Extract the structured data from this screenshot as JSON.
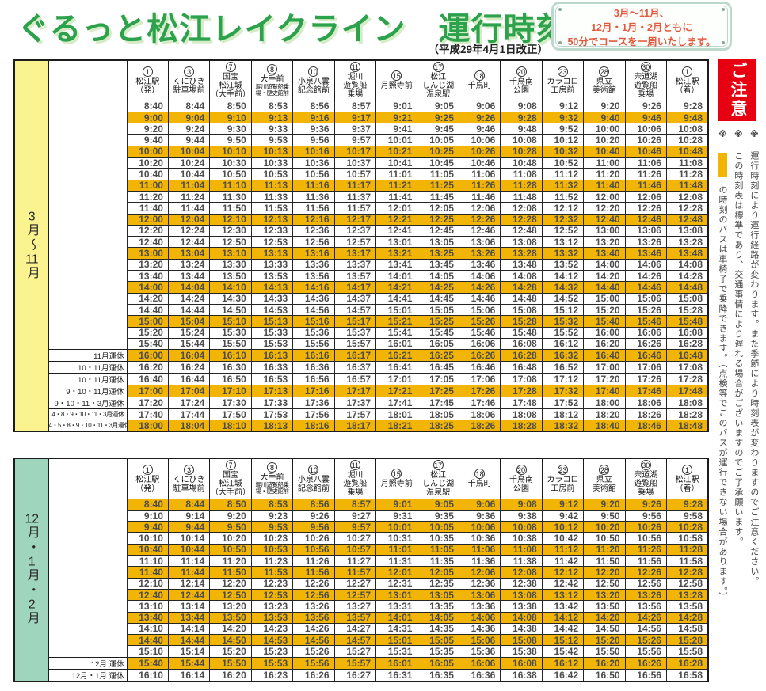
{
  "page": {
    "title": "ぐるっと松江レイクライン　運行時刻表",
    "revision": "（平成29年4月1日改正）"
  },
  "sign": {
    "lines": [
      "3月～11月、",
      "12月・1月・2月ともに",
      "50分でコースを一周いたします。"
    ]
  },
  "notice": {
    "header": "ご注意",
    "notes": [
      {
        "marker": "※",
        "swatch": false,
        "text": "運行時刻により運行経路が変わります。また季節により時刻表が変わりますのでご注意ください。"
      },
      {
        "marker": "※",
        "swatch": false,
        "text": "この時刻表は標準であり、交通事情により遅れる場合がございますのでご了承願います。"
      },
      {
        "marker": "※",
        "swatch": true,
        "text": "の時刻のバスは車椅子で乗降できます。（点検等でこのバスが運行できない場合があります。）"
      }
    ]
  },
  "stations": [
    {
      "num": "1",
      "name": "松江駅\n（発）"
    },
    {
      "num": "3",
      "name": "くにびき\n駐車場前"
    },
    {
      "num": "7",
      "name": "国宝\n松江城\n（大手前）"
    },
    {
      "num": "8",
      "name": "大手前",
      "sub": "堀川遊覧船乗場・歴史館前"
    },
    {
      "num": "10",
      "name": "小泉八雲\n記念館前"
    },
    {
      "num": "11",
      "name": "堀川\n遊覧船\n乗場"
    },
    {
      "num": "15",
      "name": "月照寺前"
    },
    {
      "num": "17",
      "name": "松江\nしんじ湖\n温泉駅"
    },
    {
      "num": "18",
      "name": "千鳥町"
    },
    {
      "num": "20",
      "name": "千鳥南\n公園"
    },
    {
      "num": "23",
      "name": "カラコロ\n工房前"
    },
    {
      "num": "28",
      "name": "県立\n美術館"
    },
    {
      "num": "30",
      "name": "宍道湖\n遊覧船\n乗場"
    },
    {
      "num": "1",
      "name": "松江駅\n（着）"
    }
  ],
  "tables": [
    {
      "id": "spring",
      "season_label": "3月〜11月",
      "label_bg": "#faf38f",
      "rows": [
        {
          "note": "",
          "hl": false,
          "times": [
            "8:40",
            "8:44",
            "8:50",
            "8:53",
            "8:56",
            "8:57",
            "9:01",
            "9:05",
            "9:06",
            "9:08",
            "9:12",
            "9:20",
            "9:26",
            "9:28"
          ]
        },
        {
          "note": "",
          "hl": true,
          "times": [
            "9:00",
            "9:04",
            "9:10",
            "9:13",
            "9:16",
            "9:17",
            "9:21",
            "9:25",
            "9:26",
            "9:28",
            "9:32",
            "9:40",
            "9:46",
            "9:48"
          ]
        },
        {
          "note": "",
          "hl": false,
          "times": [
            "9:20",
            "9:24",
            "9:30",
            "9:33",
            "9:36",
            "9:37",
            "9:41",
            "9:45",
            "9:46",
            "9:48",
            "9:52",
            "10:00",
            "10:06",
            "10:08"
          ]
        },
        {
          "note": "",
          "hl": false,
          "times": [
            "9:40",
            "9:44",
            "9:50",
            "9:53",
            "9:56",
            "9:57",
            "10:01",
            "10:05",
            "10:06",
            "10:08",
            "10:12",
            "10:20",
            "10:26",
            "10:28"
          ]
        },
        {
          "note": "",
          "hl": true,
          "times": [
            "10:00",
            "10:04",
            "10:10",
            "10:13",
            "10:16",
            "10:17",
            "10:21",
            "10:25",
            "10:26",
            "10:28",
            "10:32",
            "10:40",
            "10:46",
            "10:48"
          ]
        },
        {
          "note": "",
          "hl": false,
          "times": [
            "10:20",
            "10:24",
            "10:30",
            "10:33",
            "10:36",
            "10:37",
            "10:41",
            "10:45",
            "10:46",
            "10:48",
            "10:52",
            "11:00",
            "11:06",
            "11:08"
          ]
        },
        {
          "note": "",
          "hl": false,
          "times": [
            "10:40",
            "10:44",
            "10:50",
            "10:53",
            "10:56",
            "10:57",
            "11:01",
            "11:05",
            "11:06",
            "11:08",
            "11:12",
            "11:20",
            "11:26",
            "11:28"
          ]
        },
        {
          "note": "",
          "hl": true,
          "times": [
            "11:00",
            "11:04",
            "11:10",
            "11:13",
            "11:16",
            "11:17",
            "11:21",
            "11:25",
            "11:26",
            "11:28",
            "11:32",
            "11:40",
            "11:46",
            "11:48"
          ]
        },
        {
          "note": "",
          "hl": false,
          "times": [
            "11:20",
            "11:24",
            "11:30",
            "11:33",
            "11:36",
            "11:37",
            "11:41",
            "11:45",
            "11:46",
            "11:48",
            "11:52",
            "12:00",
            "12:06",
            "12:08"
          ]
        },
        {
          "note": "",
          "hl": false,
          "times": [
            "11:40",
            "11:44",
            "11:50",
            "11:53",
            "11:56",
            "11:57",
            "12:01",
            "12:05",
            "12:06",
            "12:08",
            "12:12",
            "12:20",
            "12:26",
            "12:28"
          ]
        },
        {
          "note": "",
          "hl": true,
          "times": [
            "12:00",
            "12:04",
            "12:10",
            "12:13",
            "12:16",
            "12:17",
            "12:21",
            "12:25",
            "12:26",
            "12:28",
            "12:32",
            "12:40",
            "12:46",
            "12:48"
          ]
        },
        {
          "note": "",
          "hl": false,
          "times": [
            "12:20",
            "12:24",
            "12:30",
            "12:33",
            "12:36",
            "12:37",
            "12:41",
            "12:45",
            "12:46",
            "12:48",
            "12:52",
            "13:00",
            "13:06",
            "13:08"
          ]
        },
        {
          "note": "",
          "hl": false,
          "times": [
            "12:40",
            "12:44",
            "12:50",
            "12:53",
            "12:56",
            "12:57",
            "13:01",
            "13:05",
            "13:06",
            "13:08",
            "13:12",
            "13:20",
            "13:26",
            "13:28"
          ]
        },
        {
          "note": "",
          "hl": true,
          "times": [
            "13:00",
            "13:04",
            "13:10",
            "13:13",
            "13:16",
            "13:17",
            "13:21",
            "13:25",
            "13:26",
            "13:28",
            "13:32",
            "13:40",
            "13:46",
            "13:48"
          ]
        },
        {
          "note": "",
          "hl": false,
          "times": [
            "13:20",
            "13:24",
            "13:30",
            "13:33",
            "13:36",
            "13:37",
            "13:41",
            "13:45",
            "13:46",
            "13:48",
            "13:52",
            "14:00",
            "14:06",
            "14:08"
          ]
        },
        {
          "note": "",
          "hl": false,
          "times": [
            "13:40",
            "13:44",
            "13:50",
            "13:53",
            "13:56",
            "13:57",
            "14:01",
            "14:05",
            "14:06",
            "14:08",
            "14:12",
            "14:20",
            "14:26",
            "14:28"
          ]
        },
        {
          "note": "",
          "hl": true,
          "times": [
            "14:00",
            "14:04",
            "14:10",
            "14:13",
            "14:16",
            "14:17",
            "14:21",
            "14:25",
            "14:26",
            "14:28",
            "14:32",
            "14:40",
            "14:46",
            "14:48"
          ]
        },
        {
          "note": "",
          "hl": false,
          "times": [
            "14:20",
            "14:24",
            "14:30",
            "14:33",
            "14:36",
            "14:37",
            "14:41",
            "14:45",
            "14:46",
            "14:48",
            "14:52",
            "15:00",
            "15:06",
            "15:08"
          ]
        },
        {
          "note": "",
          "hl": false,
          "times": [
            "14:40",
            "14:44",
            "14:50",
            "14:53",
            "14:56",
            "14:57",
            "15:01",
            "15:05",
            "15:06",
            "15:08",
            "15:12",
            "15:20",
            "15:26",
            "15:28"
          ]
        },
        {
          "note": "",
          "hl": true,
          "times": [
            "15:00",
            "15:04",
            "15:10",
            "15:13",
            "15:16",
            "15:17",
            "15:21",
            "15:25",
            "15:26",
            "15:28",
            "15:32",
            "15:40",
            "15:46",
            "15:48"
          ]
        },
        {
          "note": "",
          "hl": false,
          "times": [
            "15:20",
            "15:24",
            "15:30",
            "15:33",
            "15:36",
            "15:37",
            "15:41",
            "15:45",
            "15:46",
            "15:48",
            "15:52",
            "16:00",
            "16:06",
            "16:08"
          ]
        },
        {
          "note": "",
          "hl": false,
          "times": [
            "15:40",
            "15:44",
            "15:50",
            "15:53",
            "15:56",
            "15:57",
            "16:01",
            "16:05",
            "16:06",
            "16:08",
            "16:12",
            "16:20",
            "16:26",
            "16:28"
          ]
        },
        {
          "note": "11月運休",
          "hl": true,
          "times": [
            "16:00",
            "16:04",
            "16:10",
            "16:13",
            "16:16",
            "16:17",
            "16:21",
            "16:25",
            "16:26",
            "16:28",
            "16:32",
            "16:40",
            "16:46",
            "16:48"
          ]
        },
        {
          "note": "10・11月運休",
          "hl": false,
          "times": [
            "16:20",
            "16:24",
            "16:30",
            "16:33",
            "16:36",
            "16:37",
            "16:41",
            "16:45",
            "16:46",
            "16:48",
            "16:52",
            "17:00",
            "17:06",
            "17:08"
          ]
        },
        {
          "note": "10・11月運休",
          "hl": false,
          "times": [
            "16:40",
            "16:44",
            "16:50",
            "16:53",
            "16:56",
            "16:57",
            "17:01",
            "17:05",
            "17:06",
            "17:08",
            "17:12",
            "17:20",
            "17:26",
            "17:28"
          ]
        },
        {
          "note": "9・10・11月運休",
          "hl": true,
          "times": [
            "17:00",
            "17:04",
            "17:10",
            "17:13",
            "17:16",
            "17:17",
            "17:21",
            "17:25",
            "17:26",
            "17:28",
            "17:32",
            "17:40",
            "17:46",
            "17:48"
          ]
        },
        {
          "note": "9・10・11・3月運休",
          "hl": false,
          "times": [
            "17:20",
            "17:24",
            "17:30",
            "17:33",
            "17:36",
            "17:37",
            "17:41",
            "17:45",
            "17:46",
            "17:48",
            "17:52",
            "18:00",
            "18:06",
            "18:08"
          ]
        },
        {
          "note": "4・8・9・10・11・3月運休",
          "hl": false,
          "times": [
            "17:40",
            "17:44",
            "17:50",
            "17:53",
            "17:56",
            "17:57",
            "18:01",
            "18:05",
            "18:06",
            "18:08",
            "18:12",
            "18:20",
            "18:26",
            "18:28"
          ]
        },
        {
          "note": "4・5・8・9・10・11・3月運休",
          "hl": true,
          "times": [
            "18:00",
            "18:04",
            "18:10",
            "18:13",
            "18:16",
            "18:17",
            "18:21",
            "18:25",
            "18:26",
            "18:28",
            "18:32",
            "18:40",
            "18:46",
            "18:48"
          ]
        }
      ]
    },
    {
      "id": "winter",
      "season_label": "12月・1月・2月",
      "label_bg": "#9ed5bc",
      "rows": [
        {
          "note": "",
          "hl": true,
          "times": [
            "8:40",
            "8:44",
            "8:50",
            "8:53",
            "8:56",
            "8:57",
            "9:01",
            "9:05",
            "9:06",
            "9:08",
            "9:12",
            "9:20",
            "9:26",
            "9:28"
          ]
        },
        {
          "note": "",
          "hl": false,
          "times": [
            "9:10",
            "9:14",
            "9:20",
            "9:23",
            "9:26",
            "9:27",
            "9:31",
            "9:35",
            "9:36",
            "9:38",
            "9:42",
            "9:50",
            "9:56",
            "9:58"
          ]
        },
        {
          "note": "",
          "hl": true,
          "times": [
            "9:40",
            "9:44",
            "9:50",
            "9:53",
            "9:56",
            "9:57",
            "10:01",
            "10:05",
            "10:06",
            "10:08",
            "10:12",
            "10:20",
            "10:26",
            "10:28"
          ]
        },
        {
          "note": "",
          "hl": false,
          "times": [
            "10:10",
            "10:14",
            "10:20",
            "10:23",
            "10:26",
            "10:27",
            "10:31",
            "10:35",
            "10:36",
            "10:38",
            "10:42",
            "10:50",
            "10:56",
            "10:58"
          ]
        },
        {
          "note": "",
          "hl": true,
          "times": [
            "10:40",
            "10:44",
            "10:50",
            "10:53",
            "10:56",
            "10:57",
            "11:01",
            "11:05",
            "11:06",
            "11:08",
            "11:12",
            "11:20",
            "11:26",
            "11:28"
          ]
        },
        {
          "note": "",
          "hl": false,
          "times": [
            "11:10",
            "11:14",
            "11:20",
            "11:23",
            "11:26",
            "11:27",
            "11:31",
            "11:35",
            "11:36",
            "11:38",
            "11:42",
            "11:50",
            "11:56",
            "11:58"
          ]
        },
        {
          "note": "",
          "hl": true,
          "times": [
            "11:40",
            "11:44",
            "11:50",
            "11:53",
            "11:56",
            "11:57",
            "12:01",
            "12:05",
            "12:06",
            "12:08",
            "12:12",
            "12:20",
            "12:26",
            "12:28"
          ]
        },
        {
          "note": "",
          "hl": false,
          "times": [
            "12:10",
            "12:14",
            "12:20",
            "12:23",
            "12:26",
            "12:27",
            "12:31",
            "12:35",
            "12:36",
            "12:38",
            "12:42",
            "12:50",
            "12:56",
            "12:58"
          ]
        },
        {
          "note": "",
          "hl": true,
          "times": [
            "12:40",
            "12:44",
            "12:50",
            "12:53",
            "12:56",
            "12:57",
            "13:01",
            "13:05",
            "13:06",
            "13:08",
            "13:12",
            "13:20",
            "13:26",
            "13:28"
          ]
        },
        {
          "note": "",
          "hl": false,
          "times": [
            "13:10",
            "13:14",
            "13:20",
            "13:23",
            "13:26",
            "13:27",
            "13:31",
            "13:35",
            "13:36",
            "13:38",
            "13:42",
            "13:50",
            "13:56",
            "13:58"
          ]
        },
        {
          "note": "",
          "hl": true,
          "times": [
            "13:40",
            "13:44",
            "13:50",
            "13:53",
            "13:56",
            "13:57",
            "14:01",
            "14:05",
            "14:06",
            "14:08",
            "14:12",
            "14:20",
            "14:26",
            "14:28"
          ]
        },
        {
          "note": "",
          "hl": false,
          "times": [
            "14:10",
            "14:14",
            "14:20",
            "14:23",
            "14:26",
            "14:27",
            "14:31",
            "14:35",
            "14:36",
            "14:38",
            "14:42",
            "14:50",
            "14:56",
            "14:58"
          ]
        },
        {
          "note": "",
          "hl": true,
          "times": [
            "14:40",
            "14:44",
            "14:50",
            "14:53",
            "14:56",
            "14:57",
            "15:01",
            "15:05",
            "15:06",
            "15:08",
            "15:12",
            "15:20",
            "15:26",
            "15:28"
          ]
        },
        {
          "note": "",
          "hl": false,
          "times": [
            "15:10",
            "15:14",
            "15:20",
            "15:23",
            "15:26",
            "15:27",
            "15:31",
            "15:35",
            "15:36",
            "15:38",
            "15:42",
            "15:50",
            "15:56",
            "15:58"
          ]
        },
        {
          "note": "12月 運休",
          "hl": true,
          "times": [
            "15:40",
            "15:44",
            "15:50",
            "15:53",
            "15:56",
            "15:57",
            "16:01",
            "16:05",
            "16:06",
            "16:08",
            "16:12",
            "16:20",
            "16:26",
            "16:28"
          ]
        },
        {
          "note": "12月・1月 運休",
          "hl": false,
          "times": [
            "16:10",
            "16:14",
            "16:20",
            "16:23",
            "16:26",
            "16:27",
            "16:31",
            "16:35",
            "16:36",
            "16:38",
            "16:42",
            "16:50",
            "16:56",
            "16:58"
          ]
        }
      ]
    }
  ],
  "colors": {
    "highlight": "#f2b405",
    "notice_red": "#e60012",
    "title_green": "#2da24c",
    "title_shadow": "#d6ecc6",
    "sign_border": "#bdd8cc",
    "sign_text": "#e25a3f"
  }
}
